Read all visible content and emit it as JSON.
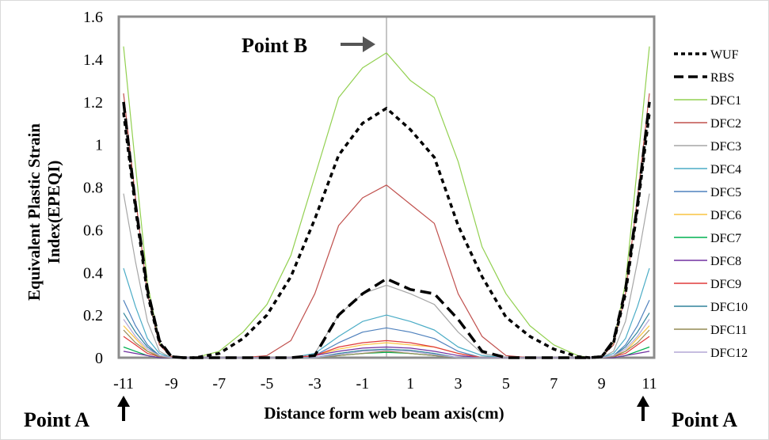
{
  "chart_data": {
    "type": "line",
    "title": "",
    "xlabel": "Distance form web beam axis(cm)",
    "ylabel": "Equivalent Plastic Strain Index(EPEQI)",
    "xlim": [
      -11.2,
      11.2
    ],
    "ylim": [
      0,
      1.6
    ],
    "xticks": [
      "-11",
      "-9",
      "-7",
      "-5",
      "-3",
      "-1",
      "1",
      "3",
      "5",
      "7",
      "9",
      "11"
    ],
    "yticks": [
      "0",
      "0.2",
      "0.4",
      "0.6",
      "0.8",
      "1",
      "1.2",
      "1.4",
      "1.6"
    ],
    "legend_position": "right",
    "grid": false,
    "annotations": [
      {
        "id": "point-b",
        "text": "Point B",
        "x": -2.0,
        "y": 1.53
      },
      {
        "id": "point-a-left",
        "text": "Point A",
        "x": -11.0,
        "y": -0.22
      },
      {
        "id": "point-a-right",
        "text": "Point A",
        "x": 11.0,
        "y": -0.22
      }
    ],
    "x": [
      -11,
      -10.5,
      -10,
      -9.5,
      -9,
      -8.5,
      -8,
      -7,
      -6,
      -5,
      -4,
      -3,
      -2,
      -1,
      0,
      1,
      2,
      3,
      4,
      5,
      6,
      7,
      8,
      8.5,
      9,
      9.5,
      10,
      10.5,
      11
    ],
    "series": [
      {
        "name": "WUF",
        "color": "#000000",
        "dash": "6,5",
        "width": 3.5,
        "values": [
          1.15,
          0.7,
          0.3,
          0.07,
          0.005,
          0,
          0,
          0.02,
          0.09,
          0.2,
          0.38,
          0.65,
          0.95,
          1.1,
          1.17,
          1.07,
          0.94,
          0.62,
          0.38,
          0.19,
          0.1,
          0.04,
          0.005,
          0,
          0.005,
          0.07,
          0.3,
          0.7,
          1.15
        ]
      },
      {
        "name": "RBS",
        "color": "#000000",
        "dash": "14,7",
        "width": 3.5,
        "values": [
          1.2,
          0.72,
          0.32,
          0.08,
          0.005,
          0,
          0,
          0,
          0,
          0,
          0,
          0.01,
          0.2,
          0.3,
          0.37,
          0.32,
          0.3,
          0.18,
          0.03,
          0,
          0,
          0,
          0,
          0,
          0.005,
          0.08,
          0.32,
          0.72,
          1.2
        ]
      },
      {
        "name": "DFC1",
        "color": "#92d050",
        "dash": "",
        "width": 1.2,
        "values": [
          1.46,
          0.9,
          0.35,
          0.07,
          0.005,
          0,
          0,
          0.03,
          0.12,
          0.25,
          0.48,
          0.85,
          1.22,
          1.36,
          1.43,
          1.3,
          1.22,
          0.92,
          0.52,
          0.3,
          0.15,
          0.06,
          0.01,
          0,
          0.005,
          0.07,
          0.35,
          0.9,
          1.46
        ]
      },
      {
        "name": "DFC2",
        "color": "#c0504d",
        "dash": "",
        "width": 1.2,
        "values": [
          1.24,
          0.75,
          0.3,
          0.06,
          0.005,
          0,
          0,
          0,
          0,
          0.01,
          0.08,
          0.3,
          0.62,
          0.75,
          0.81,
          0.72,
          0.63,
          0.3,
          0.1,
          0.01,
          0,
          0,
          0,
          0,
          0.005,
          0.06,
          0.3,
          0.75,
          1.24
        ]
      },
      {
        "name": "DFC3",
        "color": "#a6a6a6",
        "dash": "",
        "width": 1.2,
        "values": [
          0.77,
          0.45,
          0.17,
          0.03,
          0,
          0,
          0,
          0,
          0,
          0,
          0,
          0.02,
          0.2,
          0.3,
          0.34,
          0.3,
          0.25,
          0.12,
          0.02,
          0,
          0,
          0,
          0,
          0,
          0,
          0.03,
          0.17,
          0.45,
          0.77
        ]
      },
      {
        "name": "DFC4",
        "color": "#4bacc6",
        "dash": "",
        "width": 1.2,
        "values": [
          0.42,
          0.24,
          0.09,
          0.02,
          0,
          0,
          0,
          0,
          0,
          0,
          0,
          0.02,
          0.1,
          0.17,
          0.2,
          0.17,
          0.13,
          0.05,
          0.01,
          0,
          0,
          0,
          0,
          0,
          0,
          0.02,
          0.09,
          0.24,
          0.42
        ]
      },
      {
        "name": "DFC5",
        "color": "#4f81bd",
        "dash": "",
        "width": 1.2,
        "values": [
          0.27,
          0.15,
          0.06,
          0.01,
          0,
          0,
          0,
          0,
          0,
          0,
          0,
          0.01,
          0.07,
          0.12,
          0.14,
          0.12,
          0.09,
          0.03,
          0,
          0,
          0,
          0,
          0,
          0,
          0,
          0.01,
          0.06,
          0.15,
          0.27
        ]
      },
      {
        "name": "DFC6",
        "color": "#f9c440",
        "dash": "",
        "width": 1.2,
        "values": [
          0.15,
          0.09,
          0.03,
          0.01,
          0,
          0,
          0,
          0,
          0,
          0,
          0,
          0.01,
          0.04,
          0.06,
          0.07,
          0.06,
          0.05,
          0.02,
          0,
          0,
          0,
          0,
          0,
          0,
          0,
          0.01,
          0.03,
          0.09,
          0.15
        ]
      },
      {
        "name": "DFC7",
        "color": "#00b050",
        "dash": "",
        "width": 1.2,
        "values": [
          0.05,
          0.03,
          0.01,
          0,
          0,
          0,
          0,
          0,
          0,
          0,
          0,
          0,
          0.01,
          0.02,
          0.025,
          0.02,
          0.01,
          0,
          0,
          0,
          0,
          0,
          0,
          0,
          0,
          0,
          0.01,
          0.03,
          0.05
        ]
      },
      {
        "name": "DFC8",
        "color": "#7030a0",
        "dash": "",
        "width": 1.2,
        "values": [
          0.03,
          0.02,
          0.01,
          0,
          0,
          0,
          0,
          0,
          0,
          0,
          0,
          0.01,
          0.03,
          0.045,
          0.05,
          0.045,
          0.03,
          0.01,
          0,
          0,
          0,
          0,
          0,
          0,
          0,
          0,
          0.01,
          0.02,
          0.03
        ]
      },
      {
        "name": "DFC9",
        "color": "#e03a3a",
        "dash": "",
        "width": 1.2,
        "values": [
          0.1,
          0.06,
          0.02,
          0.005,
          0,
          0,
          0,
          0,
          0,
          0,
          0,
          0.01,
          0.05,
          0.07,
          0.08,
          0.07,
          0.05,
          0.02,
          0,
          0,
          0,
          0,
          0,
          0,
          0,
          0.005,
          0.02,
          0.06,
          0.1
        ]
      },
      {
        "name": "DFC10",
        "color": "#31849b",
        "dash": "",
        "width": 1.2,
        "values": [
          0.21,
          0.12,
          0.05,
          0.01,
          0,
          0,
          0,
          0,
          0,
          0,
          0,
          0,
          0.02,
          0.035,
          0.04,
          0.035,
          0.02,
          0,
          0,
          0,
          0,
          0,
          0,
          0,
          0,
          0.01,
          0.05,
          0.12,
          0.21
        ]
      },
      {
        "name": "DFC11",
        "color": "#948a54",
        "dash": "",
        "width": 1.2,
        "values": [
          0.13,
          0.07,
          0.03,
          0.005,
          0,
          0,
          0,
          0,
          0,
          0,
          0,
          0,
          0.01,
          0.02,
          0.03,
          0.02,
          0.01,
          0,
          0,
          0,
          0,
          0,
          0,
          0,
          0,
          0.005,
          0.03,
          0.07,
          0.13
        ]
      },
      {
        "name": "DFC12",
        "color": "#b4a7d6",
        "dash": "",
        "width": 1.2,
        "values": [
          0.18,
          0.1,
          0.04,
          0.01,
          0,
          0,
          0,
          0,
          0,
          0,
          0,
          0,
          0.015,
          0.03,
          0.035,
          0.03,
          0.015,
          0,
          0,
          0,
          0,
          0,
          0,
          0,
          0,
          0.01,
          0.04,
          0.1,
          0.18
        ]
      }
    ]
  }
}
